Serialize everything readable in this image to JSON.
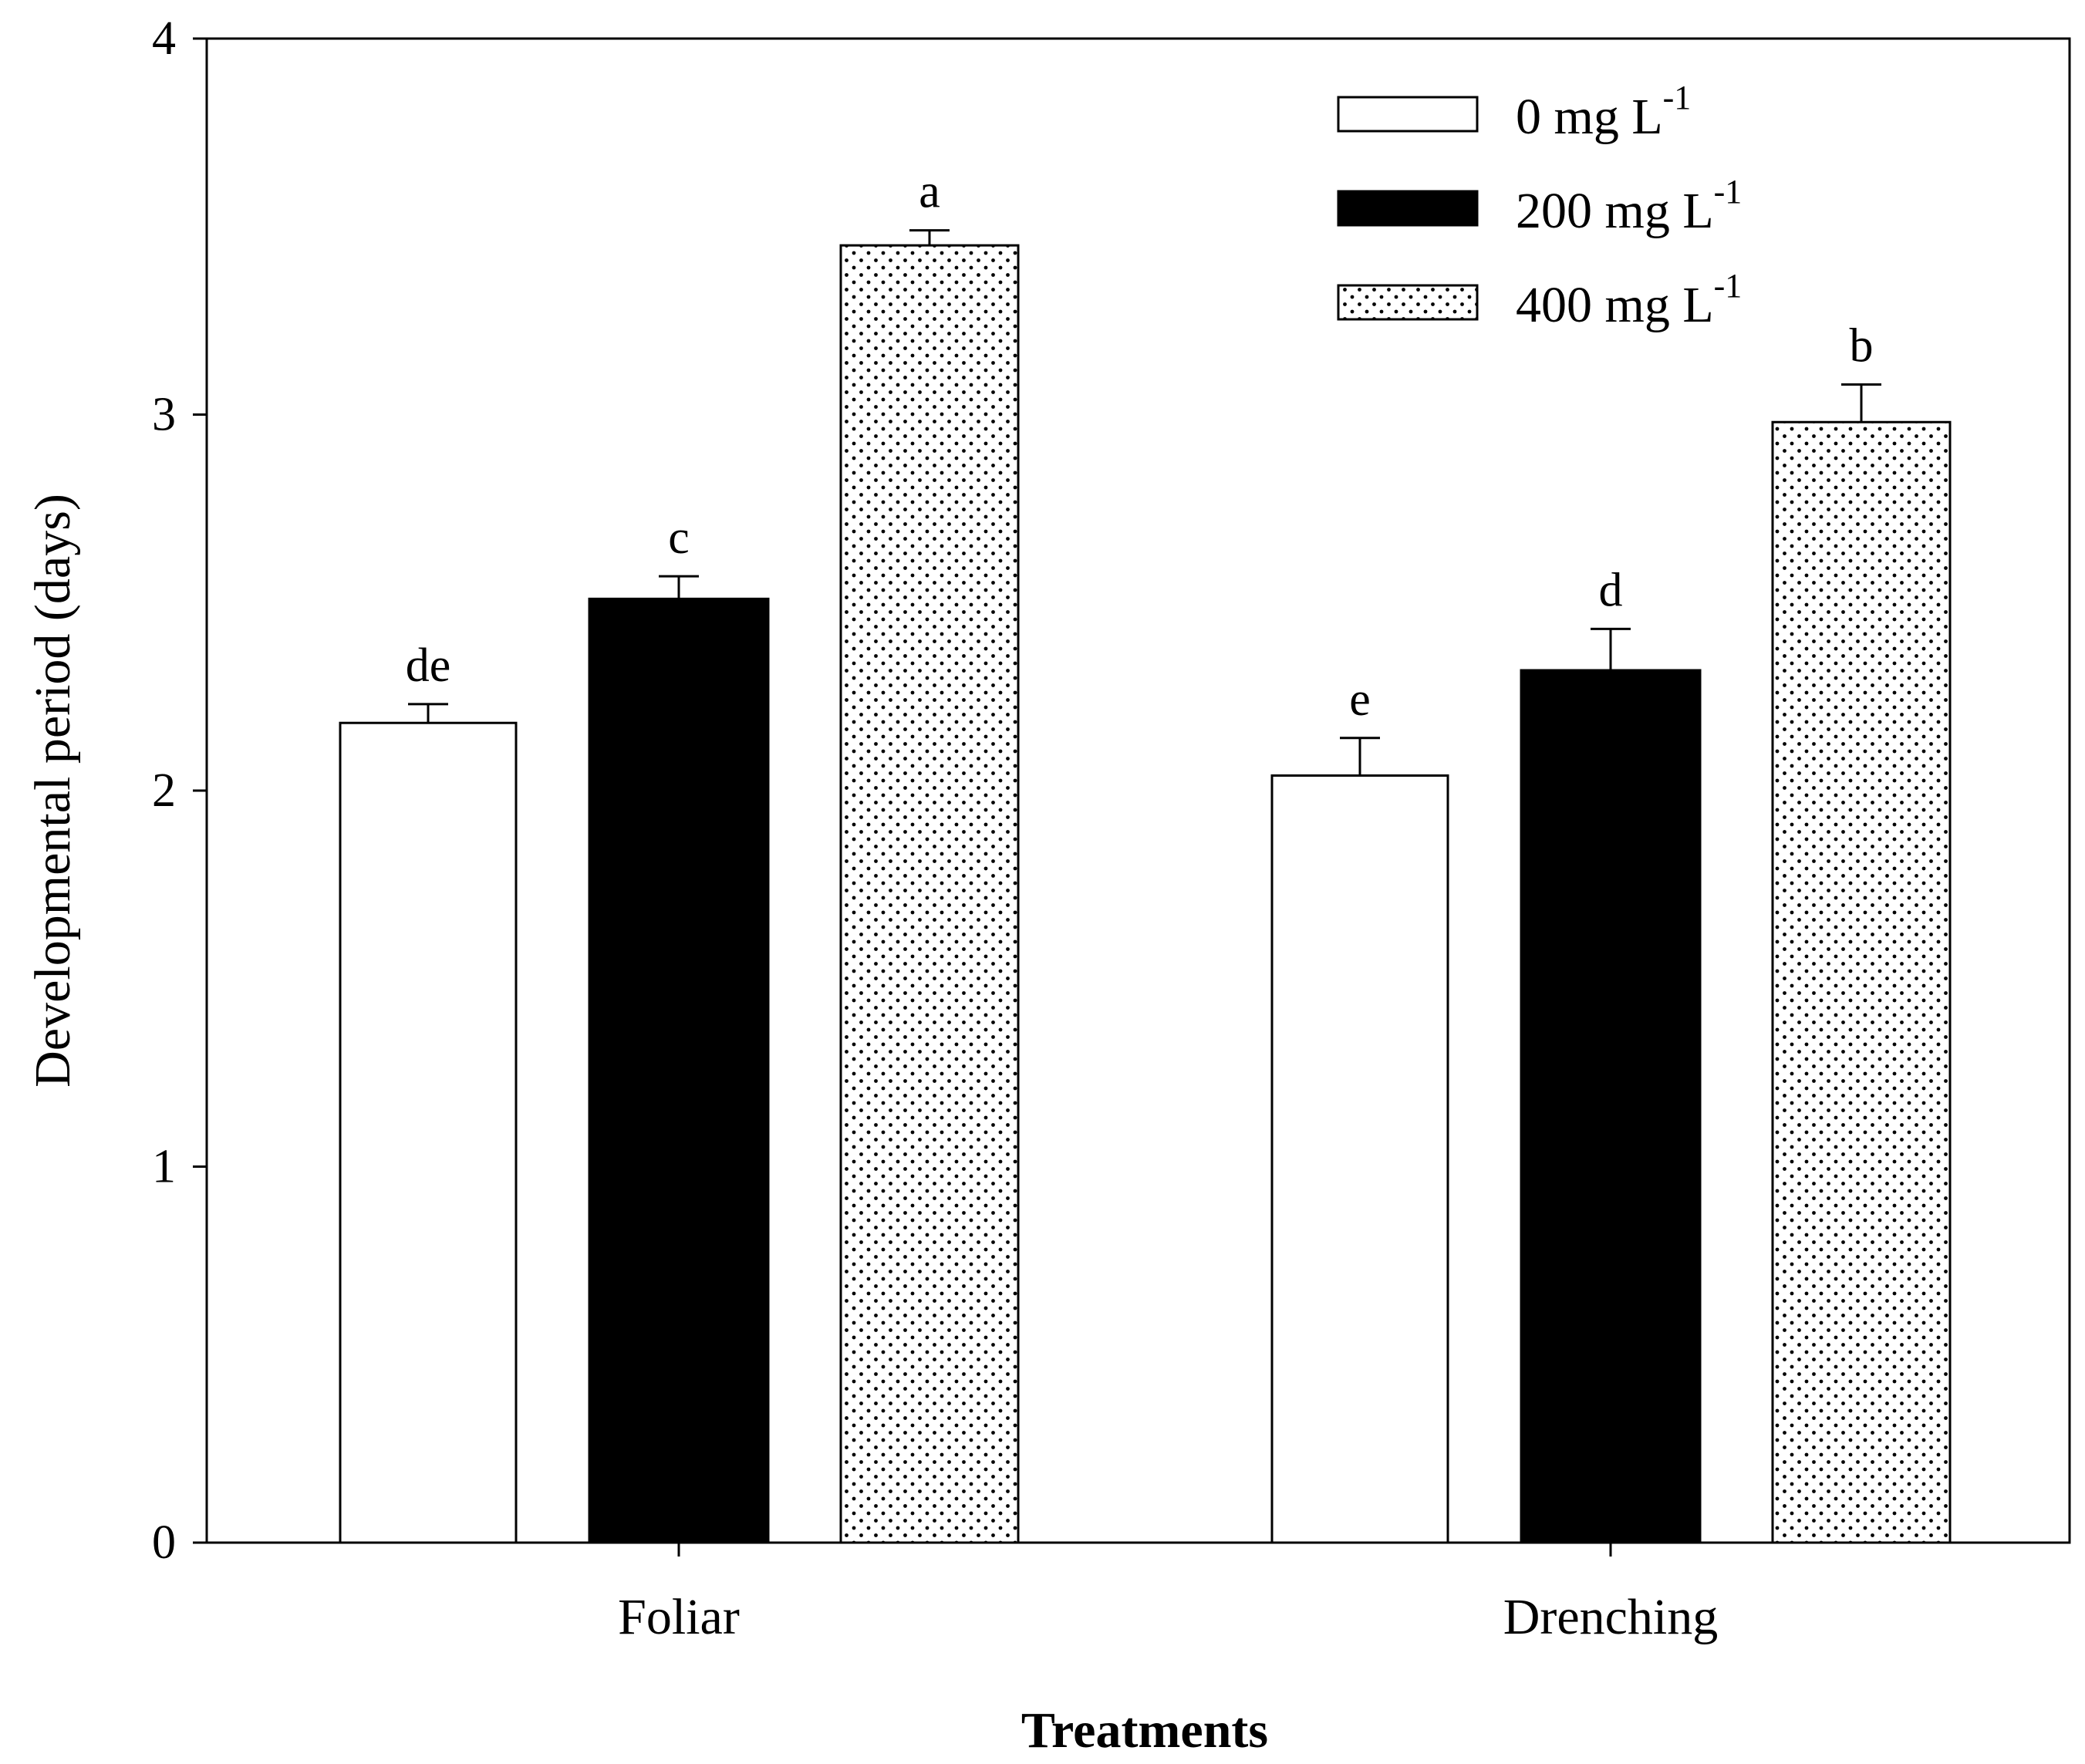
{
  "chart_data": {
    "type": "bar",
    "xlabel": "Treatments",
    "ylabel": "Developmental period (days)",
    "ylim": [
      0,
      4
    ],
    "yticks": [
      "0",
      "1",
      "2",
      "3",
      "4"
    ],
    "categories": [
      "Foliar",
      "Drenching"
    ],
    "legend_position": "top-right",
    "series": [
      {
        "name_base": "0 mg L",
        "name_sup": "-1",
        "fill": "white",
        "values": [
          2.18,
          2.04
        ],
        "errors": [
          0.05,
          0.1
        ],
        "labels": [
          "de",
          "e"
        ]
      },
      {
        "name_base": "200 mg L",
        "name_sup": "-1",
        "fill": "black",
        "values": [
          2.51,
          2.32
        ],
        "errors": [
          0.06,
          0.11
        ],
        "labels": [
          "c",
          "d"
        ]
      },
      {
        "name_base": "400 mg L",
        "name_sup": "-1",
        "fill": "dotted",
        "values": [
          3.45,
          2.98
        ],
        "errors": [
          0.04,
          0.1
        ],
        "labels": [
          "a",
          "b"
        ]
      }
    ]
  }
}
